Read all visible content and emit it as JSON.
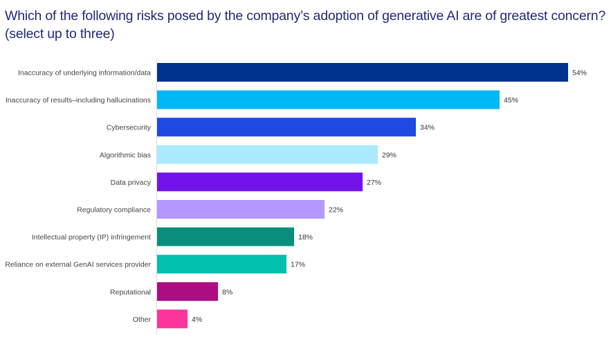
{
  "chart_data": {
    "type": "bar",
    "orientation": "horizontal",
    "title": "Which of the following risks posed by the company’s adoption of generative AI are of greatest concern? (select up to three)",
    "xlabel": "",
    "ylabel": "",
    "xlim": [
      0,
      54
    ],
    "grid": false,
    "legend": "none",
    "value_format": "{v}%",
    "categories": [
      "Inaccuracy of underlying information/data",
      "Inaccuracy of results–including hallucinations",
      "Cybersecurity",
      "Algorithmic bias",
      "Data privacy",
      "Regulatory compliance",
      "Intellectual property (IP) infringement",
      "Reliance on external GenAI services provider",
      "Reputational",
      "Other"
    ],
    "values": [
      54,
      45,
      34,
      29,
      27,
      22,
      18,
      17,
      8,
      4
    ],
    "value_labels": [
      "54%",
      "45%",
      "34%",
      "29%",
      "27%",
      "22%",
      "18%",
      "17%",
      "8%",
      "4%"
    ],
    "colors": [
      "#00338d",
      "#00b8f5",
      "#1e49e2",
      "#acEAFF",
      "#7213ea",
      "#b497ff",
      "#098e7e",
      "#00c0ae",
      "#ab0d82",
      "#fd349c"
    ]
  }
}
